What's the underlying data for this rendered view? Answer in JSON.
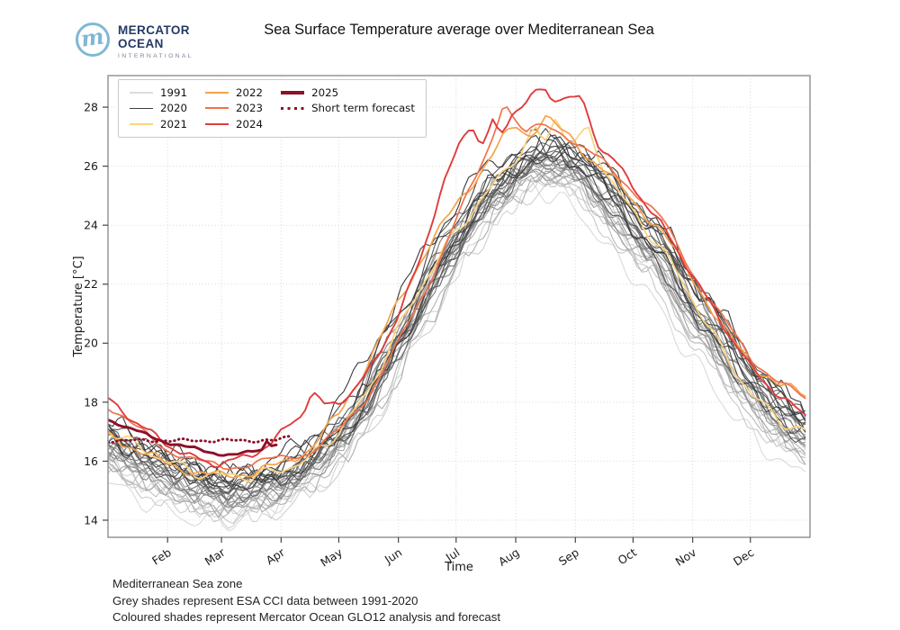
{
  "header": {
    "logo": {
      "line1": "MERCATOR",
      "line2": "OCEAN",
      "line3": "INTERNATIONAL"
    }
  },
  "chart_data": {
    "type": "line",
    "title": "Sea Surface Temperature average over Mediterranean Sea",
    "xlabel": "Time",
    "ylabel": "Temperature [°C]",
    "ylim": [
      13.4,
      29.1
    ],
    "yticks": [
      14,
      16,
      18,
      20,
      22,
      24,
      26,
      28
    ],
    "x_months": [
      {
        "label": "Feb",
        "day": 31
      },
      {
        "label": "Mar",
        "day": 59
      },
      {
        "label": "Apr",
        "day": 90
      },
      {
        "label": "May",
        "day": 120
      },
      {
        "label": "Jun",
        "day": 151
      },
      {
        "label": "Jul",
        "day": 181
      },
      {
        "label": "Aug",
        "day": 212
      },
      {
        "label": "Sep",
        "day": 243
      },
      {
        "label": "Oct",
        "day": 273
      },
      {
        "label": "Nov",
        "day": 304
      },
      {
        "label": "Dec",
        "day": 334
      }
    ],
    "grid": true,
    "legend_position": "upper left",
    "climatology": {
      "label": "ESA CCI data 1991-2020 (grey shades)",
      "year_start": 1991,
      "year_end": 2020,
      "mean_days": [
        0,
        15,
        31,
        46,
        59,
        74,
        90,
        105,
        120,
        135,
        151,
        166,
        181,
        196,
        212,
        227,
        243,
        258,
        273,
        288,
        304,
        319,
        334,
        349,
        364
      ],
      "mean_values": [
        16.6,
        16.1,
        15.6,
        15.2,
        15.0,
        15.0,
        15.4,
        15.9,
        16.9,
        18.2,
        20.2,
        21.9,
        23.6,
        24.9,
        25.8,
        26.4,
        26.0,
        25.2,
        23.9,
        23.0,
        21.3,
        20.0,
        18.6,
        17.6,
        16.7
      ],
      "spread_low": -1.05,
      "spread_high": 0.6
    },
    "series": [
      {
        "name": "2021",
        "color": "#fbd37f",
        "width": 1.7,
        "style": "solid",
        "points": [
          [
            0,
            17.1
          ],
          [
            15,
            16.5
          ],
          [
            31,
            16.0
          ],
          [
            46,
            15.6
          ],
          [
            59,
            15.5
          ],
          [
            74,
            15.5
          ],
          [
            90,
            15.7
          ],
          [
            105,
            16.1
          ],
          [
            120,
            17.0
          ],
          [
            135,
            18.3
          ],
          [
            151,
            20.5
          ],
          [
            166,
            22.3
          ],
          [
            181,
            23.8
          ],
          [
            196,
            25.0
          ],
          [
            212,
            26.3
          ],
          [
            222,
            27.2
          ],
          [
            227,
            26.8
          ],
          [
            233,
            27.7
          ],
          [
            238,
            27.0
          ],
          [
            243,
            26.8
          ],
          [
            250,
            27.2
          ],
          [
            258,
            25.9
          ],
          [
            273,
            24.4
          ],
          [
            288,
            23.2
          ],
          [
            304,
            21.5
          ],
          [
            319,
            19.8
          ],
          [
            334,
            18.3
          ],
          [
            349,
            17.4
          ],
          [
            364,
            16.9
          ]
        ]
      },
      {
        "name": "2022",
        "color": "#f6a24b",
        "width": 1.7,
        "style": "solid",
        "points": [
          [
            0,
            16.9
          ],
          [
            15,
            16.4
          ],
          [
            31,
            15.9
          ],
          [
            46,
            15.6
          ],
          [
            59,
            15.5
          ],
          [
            74,
            15.6
          ],
          [
            90,
            15.9
          ],
          [
            105,
            16.4
          ],
          [
            120,
            17.6
          ],
          [
            135,
            19.3
          ],
          [
            151,
            21.4
          ],
          [
            166,
            23.2
          ],
          [
            181,
            24.7
          ],
          [
            196,
            26.0
          ],
          [
            205,
            26.9
          ],
          [
            212,
            27.4
          ],
          [
            219,
            27.0
          ],
          [
            227,
            27.7
          ],
          [
            234,
            27.3
          ],
          [
            243,
            26.8
          ],
          [
            250,
            26.3
          ],
          [
            258,
            25.9
          ],
          [
            273,
            24.8
          ],
          [
            288,
            23.8
          ],
          [
            304,
            22.2
          ],
          [
            319,
            20.6
          ],
          [
            334,
            19.3
          ],
          [
            349,
            18.6
          ],
          [
            364,
            18.2
          ]
        ]
      },
      {
        "name": "2023",
        "color": "#f1714c",
        "width": 1.7,
        "style": "solid",
        "points": [
          [
            0,
            17.9
          ],
          [
            15,
            17.1
          ],
          [
            31,
            16.4
          ],
          [
            46,
            16.0
          ],
          [
            59,
            15.8
          ],
          [
            74,
            15.9
          ],
          [
            90,
            16.1
          ],
          [
            105,
            16.3
          ],
          [
            120,
            17.0
          ],
          [
            135,
            18.2
          ],
          [
            151,
            20.0
          ],
          [
            166,
            21.9
          ],
          [
            181,
            24.2
          ],
          [
            190,
            25.4
          ],
          [
            199,
            26.8
          ],
          [
            206,
            28.3
          ],
          [
            211,
            27.6
          ],
          [
            217,
            27.1
          ],
          [
            227,
            27.4
          ],
          [
            238,
            27.1
          ],
          [
            243,
            26.8
          ],
          [
            258,
            26.1
          ],
          [
            273,
            25.2
          ],
          [
            288,
            24.2
          ],
          [
            304,
            22.4
          ],
          [
            319,
            20.9
          ],
          [
            334,
            19.5
          ],
          [
            349,
            18.7
          ],
          [
            364,
            18.0
          ]
        ]
      },
      {
        "name": "2024",
        "color": "#e03c3d",
        "width": 1.9,
        "style": "solid",
        "points": [
          [
            0,
            18.1
          ],
          [
            15,
            17.3
          ],
          [
            31,
            16.55
          ],
          [
            43,
            16.15
          ],
          [
            55,
            15.9
          ],
          [
            64,
            16.0
          ],
          [
            74,
            16.2
          ],
          [
            85,
            16.6
          ],
          [
            95,
            17.3
          ],
          [
            101,
            17.6
          ],
          [
            106,
            18.35
          ],
          [
            112,
            17.9
          ],
          [
            120,
            18.0
          ],
          [
            128,
            18.4
          ],
          [
            135,
            19.0
          ],
          [
            151,
            20.9
          ],
          [
            163,
            23.0
          ],
          [
            174,
            25.3
          ],
          [
            183,
            26.8
          ],
          [
            189,
            27.5
          ],
          [
            194,
            26.6
          ],
          [
            200,
            27.5
          ],
          [
            204,
            27.0
          ],
          [
            210,
            27.8
          ],
          [
            216,
            28.1
          ],
          [
            222,
            28.45
          ],
          [
            227,
            28.65
          ],
          [
            231,
            28.2
          ],
          [
            236,
            28.4
          ],
          [
            241,
            28.25
          ],
          [
            246,
            28.35
          ],
          [
            251,
            27.4
          ],
          [
            256,
            26.6
          ],
          [
            262,
            26.3
          ],
          [
            273,
            25.3
          ],
          [
            288,
            24.0
          ],
          [
            304,
            22.3
          ],
          [
            319,
            20.7
          ],
          [
            334,
            19.2
          ],
          [
            349,
            18.2
          ],
          [
            364,
            17.5
          ]
        ]
      },
      {
        "name": "Short term forecast",
        "color": "#8e1029",
        "width": 2.9,
        "style": "dotted",
        "points": [
          [
            89,
            16.7
          ],
          [
            91,
            16.78
          ],
          [
            93,
            16.8
          ],
          [
            95,
            16.85
          ]
        ]
      },
      {
        "name": "2025",
        "color": "#8e1029",
        "width": 2.9,
        "style": "solid",
        "points": [
          [
            0,
            17.45
          ],
          [
            10,
            17.1
          ],
          [
            20,
            16.9
          ],
          [
            31,
            16.65
          ],
          [
            42,
            16.45
          ],
          [
            52,
            16.3
          ],
          [
            62,
            16.25
          ],
          [
            70,
            16.25
          ],
          [
            76,
            16.3
          ],
          [
            80,
            16.35
          ],
          [
            83,
            16.75
          ],
          [
            86,
            16.5
          ],
          [
            89,
            16.7
          ]
        ]
      }
    ]
  },
  "legend": {
    "items": [
      {
        "label": "1991",
        "color": "#dcdcdc",
        "style": "solid",
        "weight": 1.5
      },
      {
        "label": "2020",
        "color": "#3d3d3d",
        "style": "solid",
        "weight": 1.5
      },
      {
        "label": "2021",
        "color": "#fbd37f",
        "style": "solid",
        "weight": 2
      },
      {
        "label": "2022",
        "color": "#f6a24b",
        "style": "solid",
        "weight": 2
      },
      {
        "label": "2023",
        "color": "#f1714c",
        "style": "solid",
        "weight": 2
      },
      {
        "label": "2024",
        "color": "#e03c3d",
        "style": "solid",
        "weight": 2
      },
      {
        "label": "2025",
        "color": "#8e1029",
        "style": "solid",
        "weight": 3.5
      },
      {
        "label": "Short term forecast",
        "color": "#8e1029",
        "style": "dotted",
        "weight": 3.5
      }
    ]
  },
  "footer": {
    "lines": [
      "Mediterranean Sea zone",
      "Grey shades represent ESA CCI data between 1991-2020",
      "Coloured shades represent Mercator Ocean GLO12 analysis and forecast"
    ]
  }
}
